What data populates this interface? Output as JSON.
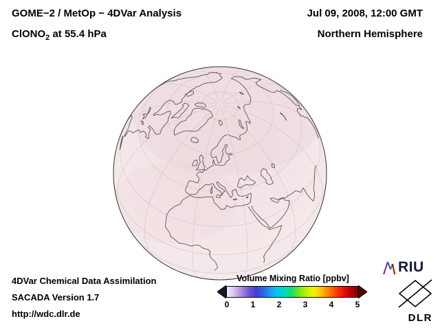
{
  "header": {
    "line1": "GOME−2 / MetOp − 4DVar Analysis",
    "line2_prefix": "ClONO",
    "line2_sub": "2",
    "line2_suffix": " at 55.4 hPa",
    "datetime": "Jul 09, 2008, 12:00 GMT",
    "hemisphere": "Northern Hemisphere"
  },
  "footer": {
    "line1": "4DVar Chemical Data Assimilation",
    "line2": "SACADA Version 1.7",
    "line3": "http://wdc.dlr.de"
  },
  "map": {
    "projection": "orthographic-northern-hemisphere",
    "colors": {
      "tint_center": "#f0dfe2",
      "tint_edge": "#f6eded",
      "patch": "#e7cdd3",
      "graticule": "#d4c2c2",
      "coastline": "#4d4343",
      "outline": "#333333"
    }
  },
  "colorbar": {
    "title": "Volume Mixing Ratio [ppbv]",
    "tick_labels": [
      "0",
      "1",
      "2",
      "3",
      "4",
      "5"
    ],
    "min": 0,
    "max": 5,
    "stops": [
      "#f2ecf8",
      "#d8c2ee",
      "#a88ae0",
      "#7258d8",
      "#4040d0",
      "#2864e8",
      "#18a0f0",
      "#00c8e8",
      "#00dcb0",
      "#20e060",
      "#78e818",
      "#c8ee00",
      "#f8f000",
      "#ffc000",
      "#ff8000",
      "#ff4000",
      "#e81800",
      "#b80000",
      "#800000"
    ],
    "left_arrow_color": "#1c1430",
    "right_arrow_color": "#520000"
  },
  "logos": {
    "riu_text": "RIU",
    "dlr_text": "DLR"
  }
}
